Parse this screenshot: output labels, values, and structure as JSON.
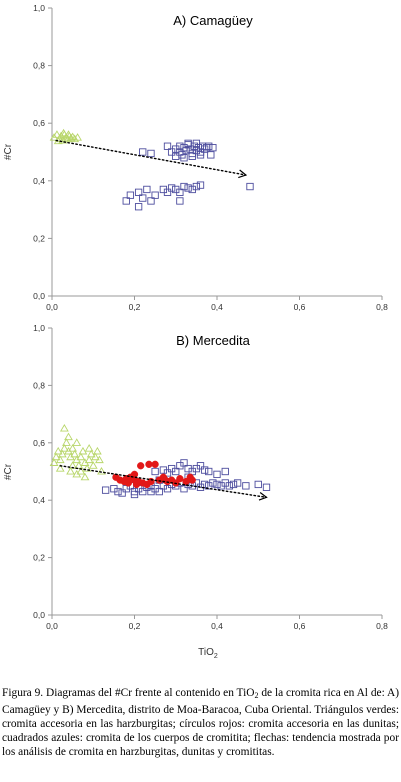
{
  "caption": {
    "part1": "Figura 9. Diagramas del #Cr frente al contenido en TiO",
    "sub": "2",
    "part2": " de la cromita rica en Al de: A) Camagüey y B) Mercedita, distrito de Moa-Baracoa, Cuba Oriental. Triángulos verdes: cromita accesoria en las harzburgitas; círculos rojos: cromita accesoria en las dunitas; cuadrados azules: cromita de los cuerpos de cromitita; flechas: tendencia mostrada por los análisis de cromita en harzburgitas, dunitas y cromititas."
  },
  "colors": {
    "triangle": "#b8d66a",
    "circle": "#e21818",
    "square": "#4d4d9e",
    "arrow": "#000000",
    "axis": "#999999"
  },
  "chart_data": [
    {
      "type": "scatter",
      "title": "A) Camagüey",
      "ylabel": "#Cr",
      "xlabel": "",
      "xlim": [
        0,
        0.8
      ],
      "ylim": [
        0,
        1
      ],
      "x_ticks": [
        "0,0",
        "0,2",
        "0,4",
        "0,6",
        "0,8"
      ],
      "y_ticks": [
        "0,0",
        "0,2",
        "0,4",
        "0,6",
        "0,8",
        "1,0"
      ],
      "series": [
        {
          "marker": "triangle",
          "points": [
            [
              0.005,
              0.55
            ],
            [
              0.012,
              0.56
            ],
            [
              0.018,
              0.545
            ],
            [
              0.022,
              0.555
            ],
            [
              0.026,
              0.54
            ],
            [
              0.03,
              0.56
            ],
            [
              0.034,
              0.55
            ],
            [
              0.038,
              0.545
            ],
            [
              0.042,
              0.555
            ],
            [
              0.046,
              0.548
            ],
            [
              0.05,
              0.552
            ],
            [
              0.055,
              0.545
            ],
            [
              0.015,
              0.538
            ],
            [
              0.028,
              0.565
            ],
            [
              0.04,
              0.56
            ],
            [
              0.062,
              0.55
            ]
          ]
        },
        {
          "marker": "square",
          "points": [
            [
              0.22,
              0.5
            ],
            [
              0.24,
              0.495
            ],
            [
              0.28,
              0.52
            ],
            [
              0.29,
              0.5
            ],
            [
              0.3,
              0.51
            ],
            [
              0.31,
              0.52
            ],
            [
              0.315,
              0.49
            ],
            [
              0.32,
              0.515
            ],
            [
              0.325,
              0.505
            ],
            [
              0.33,
              0.525
            ],
            [
              0.335,
              0.51
            ],
            [
              0.34,
              0.495
            ],
            [
              0.345,
              0.52
            ],
            [
              0.35,
              0.505
            ],
            [
              0.355,
              0.515
            ],
            [
              0.36,
              0.5
            ],
            [
              0.365,
              0.52
            ],
            [
              0.37,
              0.51
            ],
            [
              0.375,
              0.515
            ],
            [
              0.38,
              0.52
            ],
            [
              0.39,
              0.515
            ],
            [
              0.385,
              0.49
            ],
            [
              0.3,
              0.485
            ],
            [
              0.32,
              0.48
            ],
            [
              0.34,
              0.485
            ],
            [
              0.36,
              0.49
            ],
            [
              0.33,
              0.53
            ],
            [
              0.35,
              0.53
            ],
            [
              0.31,
              0.5
            ],
            [
              0.18,
              0.33
            ],
            [
              0.19,
              0.35
            ],
            [
              0.21,
              0.36
            ],
            [
              0.22,
              0.34
            ],
            [
              0.23,
              0.37
            ],
            [
              0.25,
              0.35
            ],
            [
              0.27,
              0.37
            ],
            [
              0.28,
              0.36
            ],
            [
              0.29,
              0.375
            ],
            [
              0.3,
              0.37
            ],
            [
              0.31,
              0.36
            ],
            [
              0.32,
              0.38
            ],
            [
              0.33,
              0.375
            ],
            [
              0.34,
              0.37
            ],
            [
              0.35,
              0.38
            ],
            [
              0.36,
              0.385
            ],
            [
              0.24,
              0.33
            ],
            [
              0.21,
              0.31
            ],
            [
              0.48,
              0.38
            ],
            [
              0.31,
              0.33
            ]
          ]
        }
      ],
      "trend": {
        "from": [
          0.01,
          0.54
        ],
        "to": [
          0.47,
          0.42
        ]
      }
    },
    {
      "type": "scatter",
      "title": "B) Mercedita",
      "ylabel": "#Cr",
      "xlabel": "TiO",
      "xlabel_sub": "2",
      "xlim": [
        0,
        0.8
      ],
      "ylim": [
        0,
        1
      ],
      "x_ticks": [
        "0,0",
        "0,2",
        "0,4",
        "0,6",
        "0,8"
      ],
      "y_ticks": [
        "0,0",
        "0,2",
        "0,4",
        "0,6",
        "0,8",
        "1,0"
      ],
      "series": [
        {
          "marker": "triangle",
          "points": [
            [
              0.005,
              0.53
            ],
            [
              0.01,
              0.55
            ],
            [
              0.015,
              0.57
            ],
            [
              0.02,
              0.54
            ],
            [
              0.025,
              0.56
            ],
            [
              0.03,
              0.58
            ],
            [
              0.035,
              0.6
            ],
            [
              0.04,
              0.57
            ],
            [
              0.045,
              0.55
            ],
            [
              0.05,
              0.58
            ],
            [
              0.055,
              0.56
            ],
            [
              0.06,
              0.54
            ],
            [
              0.065,
              0.52
            ],
            [
              0.07,
              0.55
            ],
            [
              0.075,
              0.57
            ],
            [
              0.08,
              0.53
            ],
            [
              0.085,
              0.51
            ],
            [
              0.09,
              0.54
            ],
            [
              0.095,
              0.56
            ],
            [
              0.1,
              0.52
            ],
            [
              0.105,
              0.55
            ],
            [
              0.11,
              0.57
            ],
            [
              0.03,
              0.65
            ],
            [
              0.04,
              0.62
            ],
            [
              0.02,
              0.51
            ],
            [
              0.045,
              0.5
            ],
            [
              0.06,
              0.49
            ],
            [
              0.08,
              0.48
            ],
            [
              0.07,
              0.5
            ],
            [
              0.05,
              0.52
            ],
            [
              0.06,
              0.6
            ],
            [
              0.09,
              0.58
            ],
            [
              0.115,
              0.54
            ],
            [
              0.12,
              0.5
            ]
          ]
        },
        {
          "marker": "square",
          "points": [
            [
              0.13,
              0.435
            ],
            [
              0.15,
              0.44
            ],
            [
              0.16,
              0.43
            ],
            [
              0.17,
              0.425
            ],
            [
              0.18,
              0.44
            ],
            [
              0.19,
              0.45
            ],
            [
              0.2,
              0.43
            ],
            [
              0.21,
              0.44
            ],
            [
              0.22,
              0.43
            ],
            [
              0.23,
              0.445
            ],
            [
              0.24,
              0.45
            ],
            [
              0.25,
              0.44
            ],
            [
              0.26,
              0.43
            ],
            [
              0.27,
              0.45
            ],
            [
              0.28,
              0.44
            ],
            [
              0.29,
              0.455
            ],
            [
              0.3,
              0.45
            ],
            [
              0.31,
              0.46
            ],
            [
              0.32,
              0.44
            ],
            [
              0.33,
              0.455
            ],
            [
              0.34,
              0.45
            ],
            [
              0.35,
              0.46
            ],
            [
              0.36,
              0.445
            ],
            [
              0.37,
              0.455
            ],
            [
              0.38,
              0.45
            ],
            [
              0.39,
              0.46
            ],
            [
              0.4,
              0.455
            ],
            [
              0.41,
              0.45
            ],
            [
              0.42,
              0.46
            ],
            [
              0.43,
              0.45
            ],
            [
              0.44,
              0.455
            ],
            [
              0.45,
              0.46
            ],
            [
              0.47,
              0.45
            ],
            [
              0.5,
              0.455
            ],
            [
              0.52,
              0.445
            ],
            [
              0.25,
              0.5
            ],
            [
              0.27,
              0.505
            ],
            [
              0.28,
              0.495
            ],
            [
              0.29,
              0.51
            ],
            [
              0.3,
              0.5
            ],
            [
              0.31,
              0.52
            ],
            [
              0.32,
              0.53
            ],
            [
              0.33,
              0.51
            ],
            [
              0.34,
              0.5
            ],
            [
              0.35,
              0.51
            ],
            [
              0.36,
              0.52
            ],
            [
              0.37,
              0.505
            ],
            [
              0.38,
              0.5
            ],
            [
              0.4,
              0.49
            ],
            [
              0.42,
              0.5
            ],
            [
              0.24,
              0.43
            ],
            [
              0.2,
              0.42
            ],
            [
              0.26,
              0.47
            ],
            [
              0.33,
              0.48
            ]
          ]
        },
        {
          "marker": "circle",
          "points": [
            [
              0.155,
              0.48
            ],
            [
              0.165,
              0.47
            ],
            [
              0.175,
              0.465
            ],
            [
              0.18,
              0.475
            ],
            [
              0.185,
              0.46
            ],
            [
              0.19,
              0.48
            ],
            [
              0.2,
              0.47
            ],
            [
              0.205,
              0.455
            ],
            [
              0.21,
              0.465
            ],
            [
              0.22,
              0.46
            ],
            [
              0.23,
              0.455
            ],
            [
              0.24,
              0.465
            ],
            [
              0.215,
              0.52
            ],
            [
              0.235,
              0.525
            ],
            [
              0.25,
              0.525
            ],
            [
              0.27,
              0.48
            ],
            [
              0.275,
              0.47
            ],
            [
              0.28,
              0.465
            ],
            [
              0.29,
              0.47
            ],
            [
              0.3,
              0.46
            ],
            [
              0.31,
              0.475
            ],
            [
              0.325,
              0.465
            ],
            [
              0.335,
              0.48
            ],
            [
              0.34,
              0.47
            ],
            [
              0.26,
              0.47
            ],
            [
              0.2,
              0.49
            ]
          ]
        }
      ],
      "trend": {
        "from": [
          0.02,
          0.52
        ],
        "to": [
          0.52,
          0.41
        ]
      }
    }
  ]
}
